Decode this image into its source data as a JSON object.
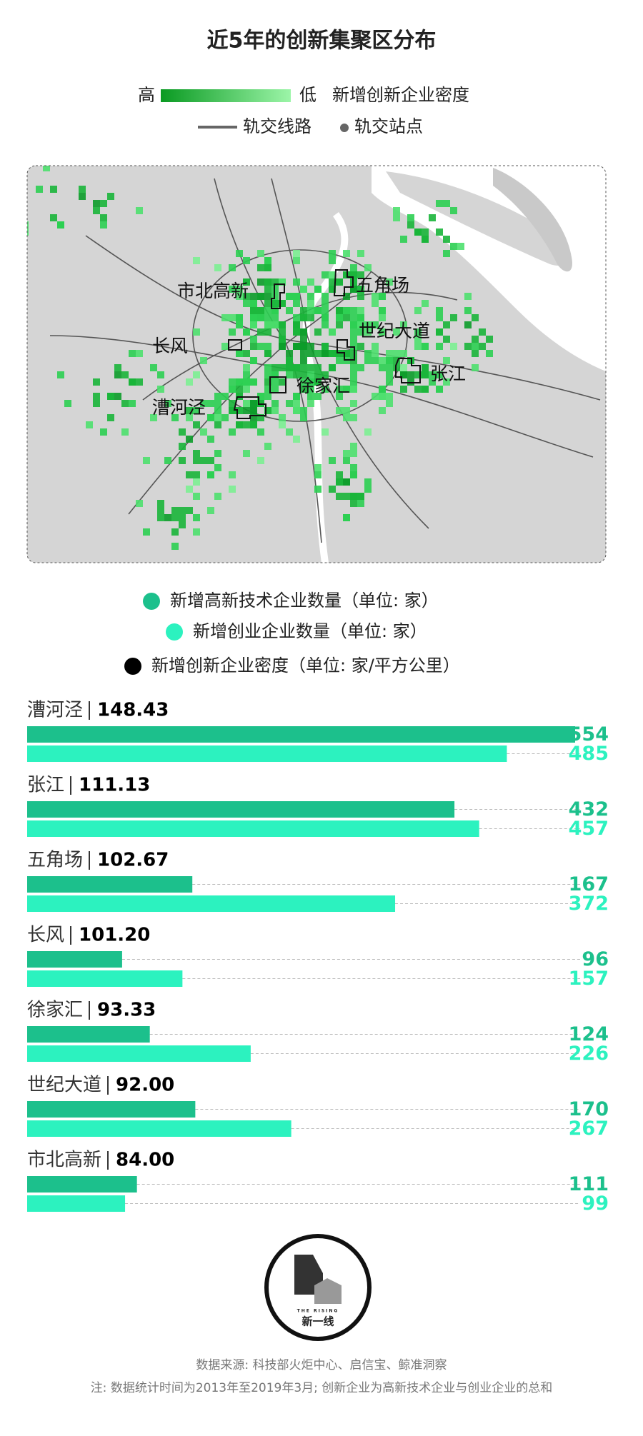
{
  "header": {
    "title": "近5年的创新集聚区分布",
    "legend": {
      "high": "高",
      "low": "低",
      "density": "新增创新企业密度",
      "rail_line": "轨交线路",
      "rail_station": "轨交站点"
    }
  },
  "map": {
    "labels": [
      "市北高新",
      "五角场",
      "世纪大道",
      "长风",
      "张江",
      "徐家汇",
      "漕河泾"
    ]
  },
  "chart_data": {
    "type": "bar",
    "categories": [
      "漕河泾",
      "张江",
      "五角场",
      "长风",
      "徐家汇",
      "世纪大道",
      "市北高新"
    ],
    "series": [
      {
        "name": "新增高新技术企业数量（单位: 家）",
        "color": "#1cc08c",
        "values": [
          554,
          432,
          167,
          96,
          124,
          170,
          111
        ]
      },
      {
        "name": "新增创业企业数量（单位: 家）",
        "color": "#2cf2bf",
        "values": [
          485,
          457,
          372,
          157,
          226,
          267,
          99
        ]
      },
      {
        "name": "新增创新企业密度（单位: 家/平方公里）",
        "color": "#000000",
        "values": [
          148.43,
          111.13,
          102.67,
          101.2,
          93.33,
          92,
          84
        ],
        "value_labels": [
          "148.43",
          "111.13",
          "102.67",
          "101.20",
          "93.33",
          "92.00",
          "84.00"
        ]
      }
    ]
  },
  "logo": {
    "tagline": "THE RISING",
    "name": "新一线"
  },
  "footer": {
    "source": "数据来源: 科技部火炬中心、启信宝、鲸准洞察",
    "note": "注: 数据统计时间为2013年至2019年3月; 创新企业为高新技术企业与创业企业的总和"
  }
}
